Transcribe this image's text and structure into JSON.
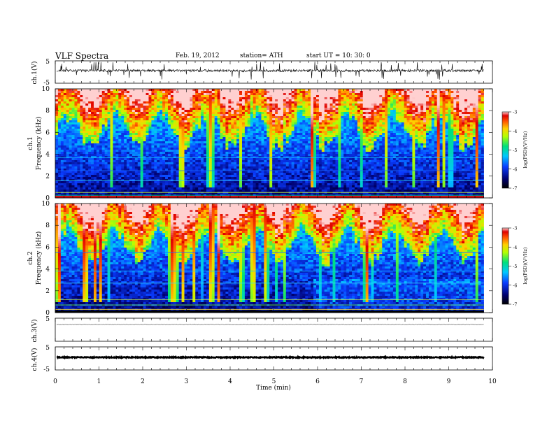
{
  "header": {
    "title": "VLF  Spectra",
    "date": "Feb. 19, 2012",
    "station": "station= ATH",
    "start": "start  UT  =    10: 30: 0"
  },
  "chart_data": [
    {
      "type": "line",
      "panel": "ch1-waveform",
      "ylabel": "ch.1(V)",
      "ylim": [
        -5,
        5
      ],
      "yticks": [
        "5",
        "-5"
      ]
    },
    {
      "type": "heatmap",
      "panel": "ch1-spectrogram",
      "ylabel_line1": "ch.1",
      "ylabel_line2": "Frequency  (kHz)",
      "ylim": [
        0,
        10
      ],
      "yticks": [
        "10",
        "8",
        "6",
        "4",
        "2",
        "0"
      ],
      "colorbar": {
        "label": "log(PSD)(V²/Hz)",
        "range": [
          -7,
          -3
        ],
        "ticks": [
          "-3",
          "-4",
          "-5",
          "-6",
          "-7"
        ]
      }
    },
    {
      "type": "heatmap",
      "panel": "ch2-spectrogram",
      "ylabel_line1": "ch.2",
      "ylabel_line2": "Frequency  (kHz)",
      "ylim": [
        0,
        10
      ],
      "yticks": [
        "10",
        "8",
        "6",
        "4",
        "2",
        "0"
      ],
      "colorbar": {
        "label": "log(PSD)(V²/Hz)",
        "range": [
          -7,
          -3
        ],
        "ticks": [
          "-3",
          "-4",
          "-5",
          "-6",
          "-7"
        ]
      }
    },
    {
      "type": "line",
      "panel": "ch3-waveform",
      "ylabel": "ch.3(V)",
      "ylim": [
        -5,
        5
      ],
      "yticks": [
        "5"
      ]
    },
    {
      "type": "line",
      "panel": "ch4-waveform",
      "ylabel": "ch.4(V)",
      "ylim": [
        -5,
        5
      ],
      "yticks": [
        "5",
        "-5"
      ]
    }
  ],
  "xaxis": {
    "label": "Time  (min)",
    "xlim": [
      0,
      10
    ],
    "ticks": [
      "0",
      "1",
      "2",
      "3",
      "4",
      "5",
      "6",
      "7",
      "8",
      "9",
      "10"
    ],
    "data_end": 9.8
  }
}
